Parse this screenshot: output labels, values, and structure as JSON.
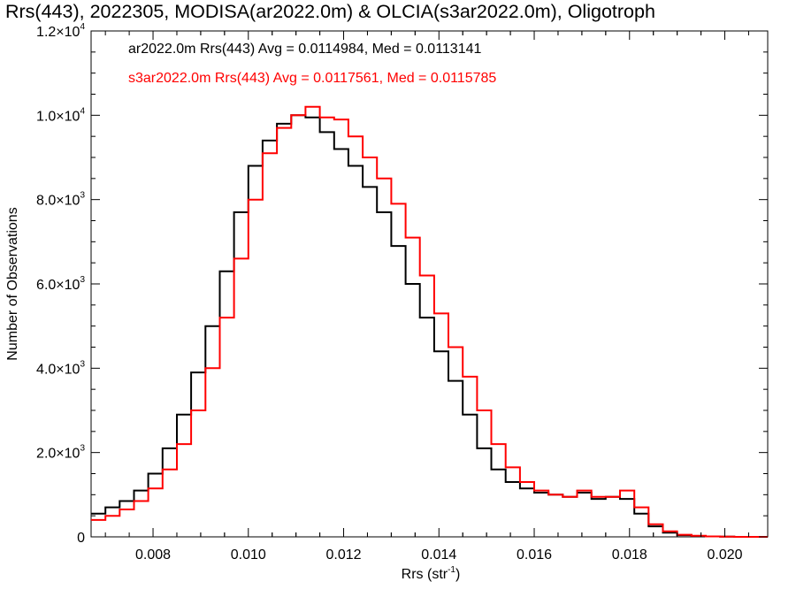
{
  "chart_data": {
    "type": "line",
    "title": "Rrs(443), 2022305, MODISA(ar2022.0m) & OLCIA(s3ar2022.0m), Oligotroph",
    "xlabel": "Rrs (str",
    "xlabel_sup": "-1",
    "xlabel_end": ")",
    "ylabel": "Number of Observations",
    "xlim": [
      0.0067,
      0.0209
    ],
    "ylim": [
      0,
      12000
    ],
    "x_ticks": [
      {
        "value": 0.008,
        "label": "0.008"
      },
      {
        "value": 0.01,
        "label": "0.010"
      },
      {
        "value": 0.012,
        "label": "0.012"
      },
      {
        "value": 0.014,
        "label": "0.014"
      },
      {
        "value": 0.016,
        "label": "0.016"
      },
      {
        "value": 0.018,
        "label": "0.018"
      },
      {
        "value": 0.02,
        "label": "0.020"
      }
    ],
    "y_ticks": [
      {
        "value": 0,
        "base": "0",
        "exp": ""
      },
      {
        "value": 2000,
        "base": "2.0×10",
        "exp": "3"
      },
      {
        "value": 4000,
        "base": "4.0×10",
        "exp": "3"
      },
      {
        "value": 6000,
        "base": "6.0×10",
        "exp": "3"
      },
      {
        "value": 8000,
        "base": "8.0×10",
        "exp": "3"
      },
      {
        "value": 10000,
        "base": "1.0×10",
        "exp": "4"
      },
      {
        "value": 12000,
        "base": "1.2×10",
        "exp": "4"
      }
    ],
    "series": [
      {
        "name": "ar2022.0m Rrs(443) Avg = 0.0114984, Med = 0.0113141",
        "color": "#000000",
        "x": [
          0.0067,
          0.007,
          0.0073,
          0.0076,
          0.0079,
          0.0082,
          0.0085,
          0.0088,
          0.0091,
          0.0094,
          0.0097,
          0.01,
          0.0103,
          0.0106,
          0.0109,
          0.0112,
          0.0115,
          0.0118,
          0.0121,
          0.0124,
          0.0127,
          0.013,
          0.0133,
          0.0136,
          0.0139,
          0.0142,
          0.0145,
          0.0148,
          0.0151,
          0.0154,
          0.0157,
          0.016,
          0.0163,
          0.0166,
          0.0169,
          0.0172,
          0.0175,
          0.0178,
          0.0181,
          0.0184,
          0.0187,
          0.019,
          0.0193,
          0.0196,
          0.0199,
          0.0202,
          0.0205,
          0.0209
        ],
        "values": [
          550,
          700,
          850,
          1100,
          1500,
          2100,
          2900,
          3900,
          5000,
          6300,
          7700,
          8800,
          9400,
          9800,
          10000,
          9950,
          9600,
          9200,
          8800,
          8300,
          7700,
          6900,
          6000,
          5200,
          4400,
          3700,
          2900,
          2100,
          1600,
          1300,
          1150,
          1050,
          1000,
          950,
          1050,
          900,
          950,
          900,
          550,
          250,
          100,
          40,
          20,
          10,
          5,
          0,
          0,
          0
        ]
      },
      {
        "name": "s3ar2022.0m Rrs(443) Avg = 0.0117561, Med = 0.0115785",
        "color": "#ff0000",
        "x": [
          0.0067,
          0.007,
          0.0073,
          0.0076,
          0.0079,
          0.0082,
          0.0085,
          0.0088,
          0.0091,
          0.0094,
          0.0097,
          0.01,
          0.0103,
          0.0106,
          0.0109,
          0.0112,
          0.0115,
          0.0118,
          0.0121,
          0.0124,
          0.0127,
          0.013,
          0.0133,
          0.0136,
          0.0139,
          0.0142,
          0.0145,
          0.0148,
          0.0151,
          0.0154,
          0.0157,
          0.016,
          0.0163,
          0.0166,
          0.0169,
          0.0172,
          0.0175,
          0.0178,
          0.0181,
          0.0184,
          0.0187,
          0.019,
          0.0193,
          0.0196,
          0.0199,
          0.0202,
          0.0205,
          0.0209
        ],
        "values": [
          400,
          500,
          650,
          850,
          1150,
          1600,
          2200,
          3000,
          4000,
          5200,
          6600,
          8000,
          9100,
          9700,
          10000,
          10200,
          9950,
          9900,
          9500,
          9000,
          8500,
          7900,
          7100,
          6200,
          5300,
          4500,
          3800,
          3000,
          2200,
          1650,
          1300,
          1100,
          1000,
          950,
          1100,
          950,
          950,
          1100,
          700,
          300,
          130,
          50,
          25,
          10,
          5,
          0,
          0,
          0
        ]
      }
    ]
  }
}
